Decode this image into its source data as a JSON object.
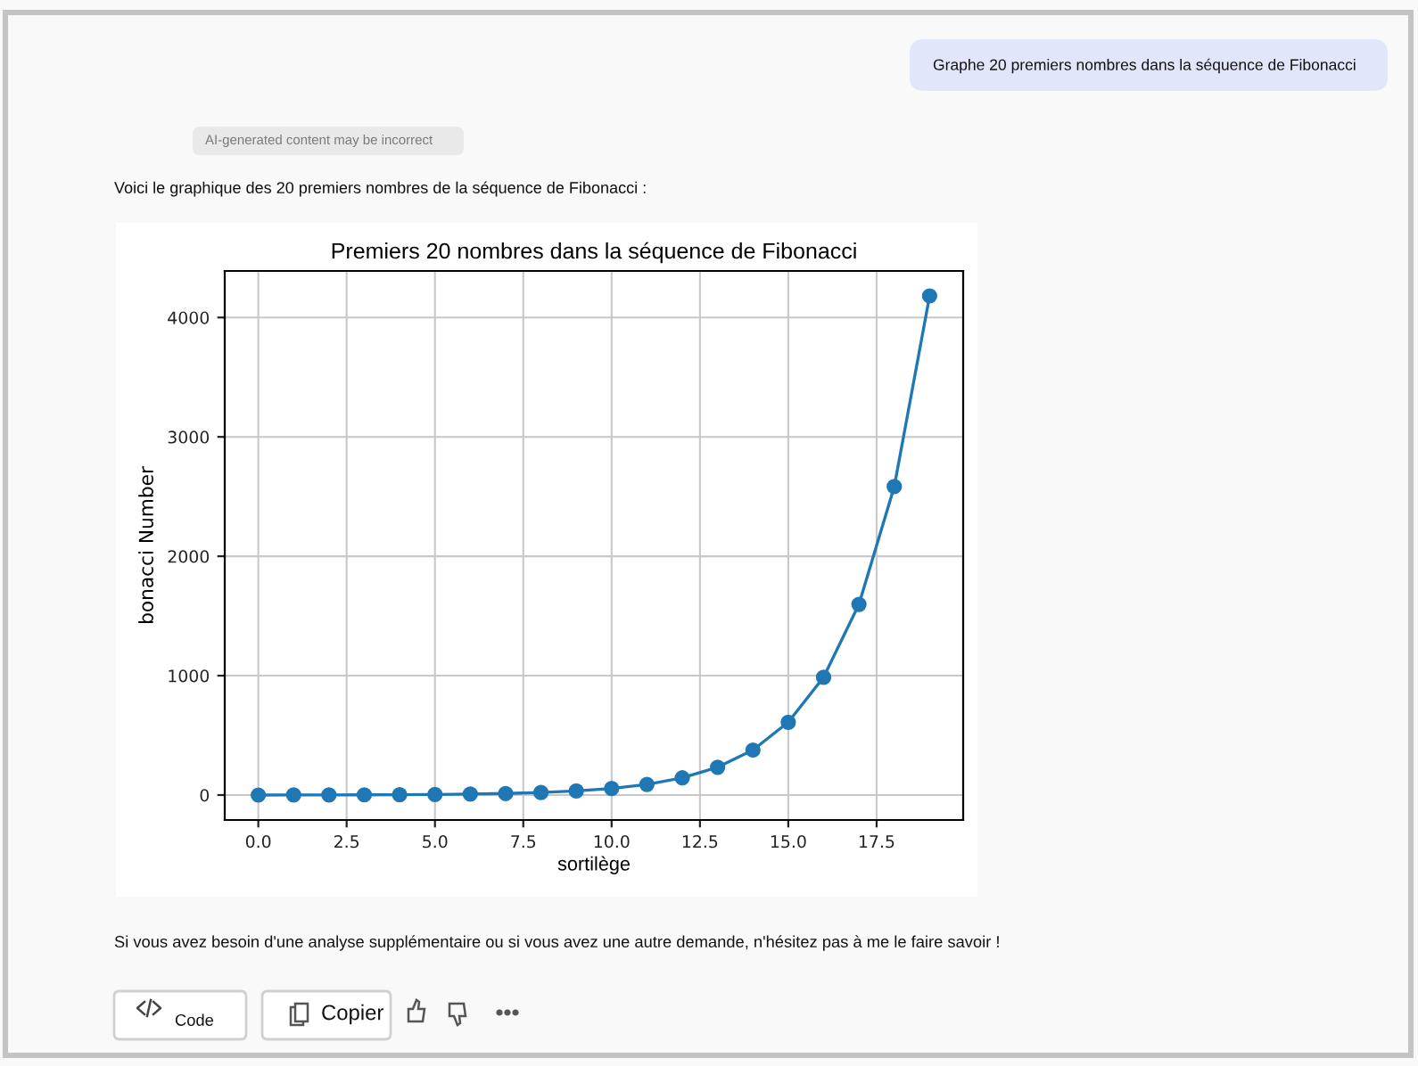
{
  "chart_data": {
    "type": "line",
    "title": "Premiers 20 nombres dans la séquence de Fibonacci",
    "xlabel": "sortilège",
    "ylabel": "bonacci Number",
    "x": [
      0,
      1,
      2,
      3,
      4,
      5,
      6,
      7,
      8,
      9,
      10,
      11,
      12,
      13,
      14,
      15,
      16,
      17,
      18,
      19
    ],
    "series": [
      {
        "color": "#1f77b4",
        "values": [
          0,
          1,
          1,
          2,
          3,
          5,
          8,
          13,
          21,
          34,
          55,
          89,
          144,
          233,
          377,
          610,
          987,
          1597,
          2584,
          4181
        ]
      }
    ],
    "xlim": [
      -0.95,
      19.95
    ],
    "ylim": [
      -209,
      4390
    ],
    "xticks": [
      {
        "value": 0,
        "label": "0.0"
      },
      2.5,
      {
        "value": 5,
        "label": "5.0"
      },
      7.5,
      {
        "value": 10,
        "label": "10.0"
      },
      12.5,
      {
        "value": 15,
        "label": "15.0"
      },
      17.5
    ],
    "yticks": [
      0,
      1000,
      2000,
      3000,
      4000
    ],
    "grid": true,
    "marker": "circle",
    "line_style": "solid",
    "annotations": [
      "Graphe 20 premiers nombres dans la séquence de Fibonacci",
      "AI-generated content may be incorrect",
      "Voici le graphique des 20 premiers nombres de la séquence de Fibonacci :",
      "Si vous avez besoin d'une analyse supplémentaire ou si vous avez une autre demande, n'hésitez pas à me le faire savoir !",
      "Code",
      "Copier"
    ]
  }
}
